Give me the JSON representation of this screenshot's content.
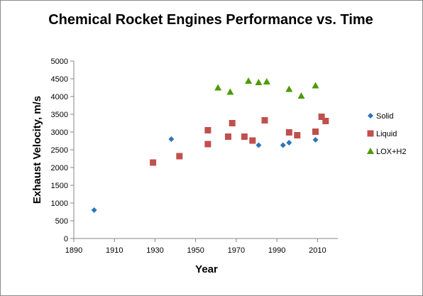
{
  "chart_data": {
    "type": "scatter",
    "title": "Chemical Rocket Engines Performance vs. Time",
    "xlabel": "Year",
    "ylabel": "Exhaust Velocity, m/s",
    "xlim": [
      1890,
      2020
    ],
    "ylim": [
      0,
      5000
    ],
    "xticks": [
      1890,
      1910,
      1930,
      1950,
      1970,
      1990,
      2010
    ],
    "yticks": [
      0,
      500,
      1000,
      1500,
      2000,
      2500,
      3000,
      3500,
      4000,
      4500,
      5000
    ],
    "grid": false,
    "legend_position": "right",
    "series": [
      {
        "name": "Solid",
        "marker": "diamond",
        "color": "#2E75B6",
        "points": [
          {
            "x": 1900,
            "y": 800
          },
          {
            "x": 1938,
            "y": 2800
          },
          {
            "x": 1981,
            "y": 2630
          },
          {
            "x": 1993,
            "y": 2630
          },
          {
            "x": 1996,
            "y": 2700
          },
          {
            "x": 2009,
            "y": 2780
          }
        ]
      },
      {
        "name": "Liquid",
        "marker": "square",
        "color": "#C0504D",
        "points": [
          {
            "x": 1929,
            "y": 2140
          },
          {
            "x": 1942,
            "y": 2320
          },
          {
            "x": 1956,
            "y": 3050
          },
          {
            "x": 1956,
            "y": 2660
          },
          {
            "x": 1966,
            "y": 2870
          },
          {
            "x": 1968,
            "y": 3250
          },
          {
            "x": 1974,
            "y": 2870
          },
          {
            "x": 1978,
            "y": 2760
          },
          {
            "x": 1984,
            "y": 3330
          },
          {
            "x": 1996,
            "y": 2990
          },
          {
            "x": 2000,
            "y": 2910
          },
          {
            "x": 2009,
            "y": 3010
          },
          {
            "x": 2012,
            "y": 3430
          },
          {
            "x": 2014,
            "y": 3310
          }
        ]
      },
      {
        "name": "LOX+H2",
        "marker": "triangle",
        "color": "#4E9A06",
        "points": [
          {
            "x": 1961,
            "y": 4250
          },
          {
            "x": 1967,
            "y": 4130
          },
          {
            "x": 1976,
            "y": 4440
          },
          {
            "x": 1981,
            "y": 4400
          },
          {
            "x": 1985,
            "y": 4420
          },
          {
            "x": 1996,
            "y": 4210
          },
          {
            "x": 2002,
            "y": 4020
          },
          {
            "x": 2009,
            "y": 4310
          }
        ]
      }
    ]
  }
}
